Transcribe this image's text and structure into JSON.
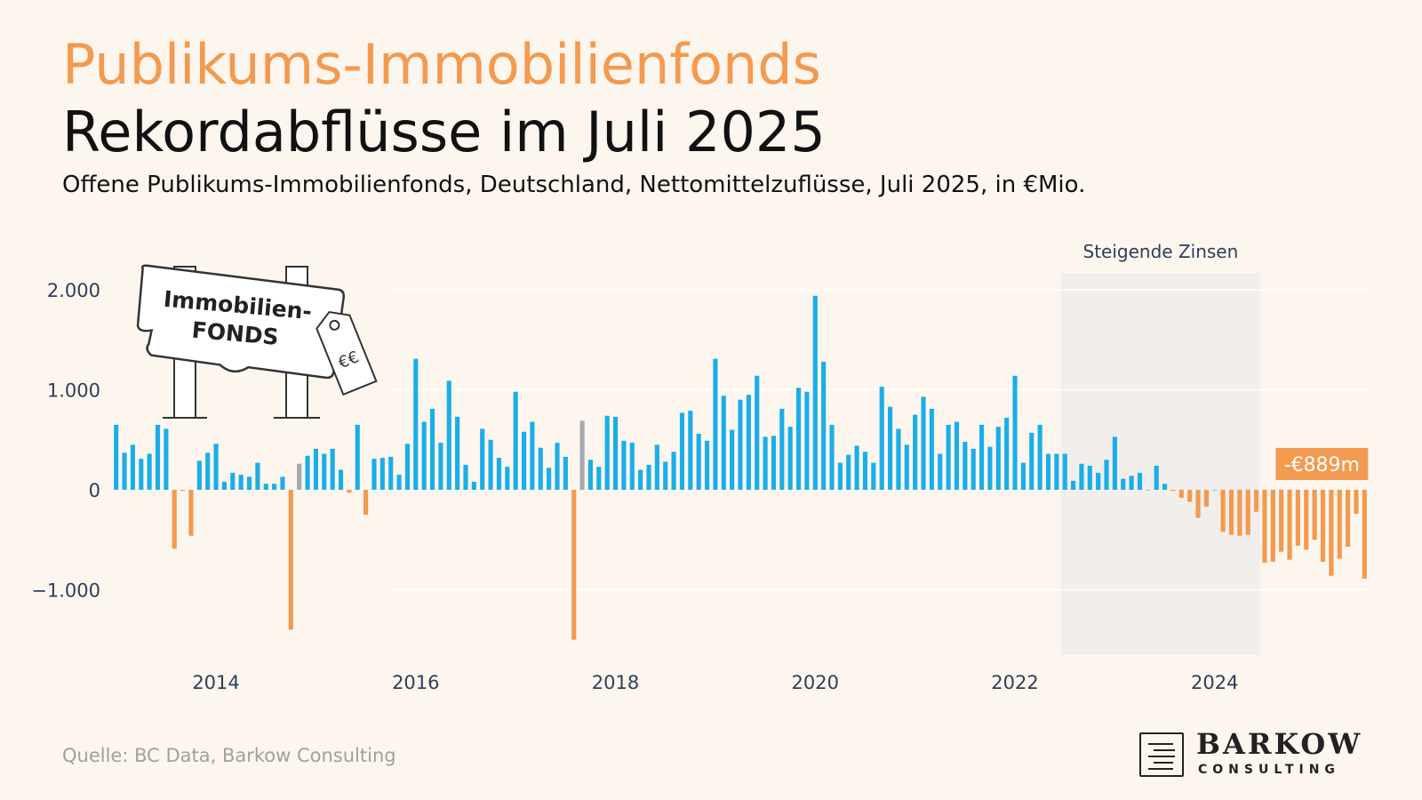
{
  "header": {
    "kicker": "Publikums-Immobilienfonds",
    "title": "Rekordabflüsse im Juli 2025",
    "subtitle": "Offene Publikums-Immobilienfonds, Deutschland, Nettomittelzuflüsse, Juli 2025, in €Mio."
  },
  "source": "Quelle: BC Data, Barkow Consulting",
  "logo": {
    "name": "BARKOW",
    "sub": "CONSULTING"
  },
  "illustration": {
    "sign_line1": "Immobilien-",
    "sign_line2": "FONDS",
    "tag_text": "€€",
    "icon": "sign-post-with-price-tag"
  },
  "colors": {
    "positive": "#1aaee8",
    "negative": "#f39a50",
    "outlier": "#a7aab0",
    "shade": "#f1eeeb",
    "grid": "#ffffff"
  },
  "chart_data": {
    "type": "bar",
    "ylim": [
      -1650,
      2100
    ],
    "xlim": [
      "2013-01",
      "2025-07"
    ],
    "yticks": [
      {
        "value": 2000,
        "label": "2.000"
      },
      {
        "value": 1000,
        "label": "1.000"
      },
      {
        "value": 0,
        "label": "0"
      },
      {
        "value": -1000,
        "label": "−1.000"
      }
    ],
    "xticks": [
      {
        "date": "2014-01",
        "label": "2014"
      },
      {
        "date": "2016-01",
        "label": "2016"
      },
      {
        "date": "2018-01",
        "label": "2018"
      },
      {
        "date": "2020-01",
        "label": "2020"
      },
      {
        "date": "2022-01",
        "label": "2022"
      },
      {
        "date": "2024-01",
        "label": "2024"
      }
    ],
    "shaded_region": {
      "from": "2022-07",
      "to": "2024-07",
      "label": "Steigende Zinsen"
    },
    "callout": {
      "date": "2025-07",
      "value": -889,
      "label": "-€889m"
    },
    "start": "2013-01",
    "frequency": "monthly",
    "outliers": [
      "2014-11",
      "2017-09"
    ],
    "values": [
      650,
      370,
      450,
      310,
      360,
      650,
      610,
      -590,
      -10,
      -460,
      290,
      370,
      460,
      80,
      170,
      150,
      130,
      270,
      60,
      60,
      130,
      -1400,
      260,
      340,
      410,
      360,
      410,
      200,
      -30,
      650,
      -250,
      310,
      320,
      330,
      150,
      460,
      1310,
      680,
      810,
      470,
      1090,
      730,
      250,
      80,
      610,
      500,
      320,
      230,
      980,
      580,
      680,
      420,
      220,
      470,
      330,
      -1500,
      690,
      300,
      230,
      740,
      730,
      490,
      470,
      200,
      250,
      450,
      280,
      380,
      770,
      790,
      560,
      490,
      1310,
      940,
      600,
      900,
      950,
      1140,
      530,
      540,
      810,
      630,
      1020,
      980,
      1940,
      1280,
      650,
      270,
      350,
      440,
      380,
      270,
      1030,
      830,
      610,
      450,
      750,
      930,
      810,
      360,
      650,
      680,
      480,
      410,
      650,
      430,
      630,
      720,
      1140,
      270,
      570,
      650,
      360,
      360,
      360,
      90,
      260,
      240,
      170,
      300,
      530,
      110,
      140,
      170,
      0,
      240,
      60,
      -10,
      -80,
      -120,
      -280,
      -170,
      0,
      -420,
      -450,
      -460,
      -450,
      -220,
      -730,
      -720,
      -620,
      -700,
      -560,
      -600,
      -500,
      -720,
      -860,
      -690,
      -570,
      -240,
      -889
    ]
  }
}
